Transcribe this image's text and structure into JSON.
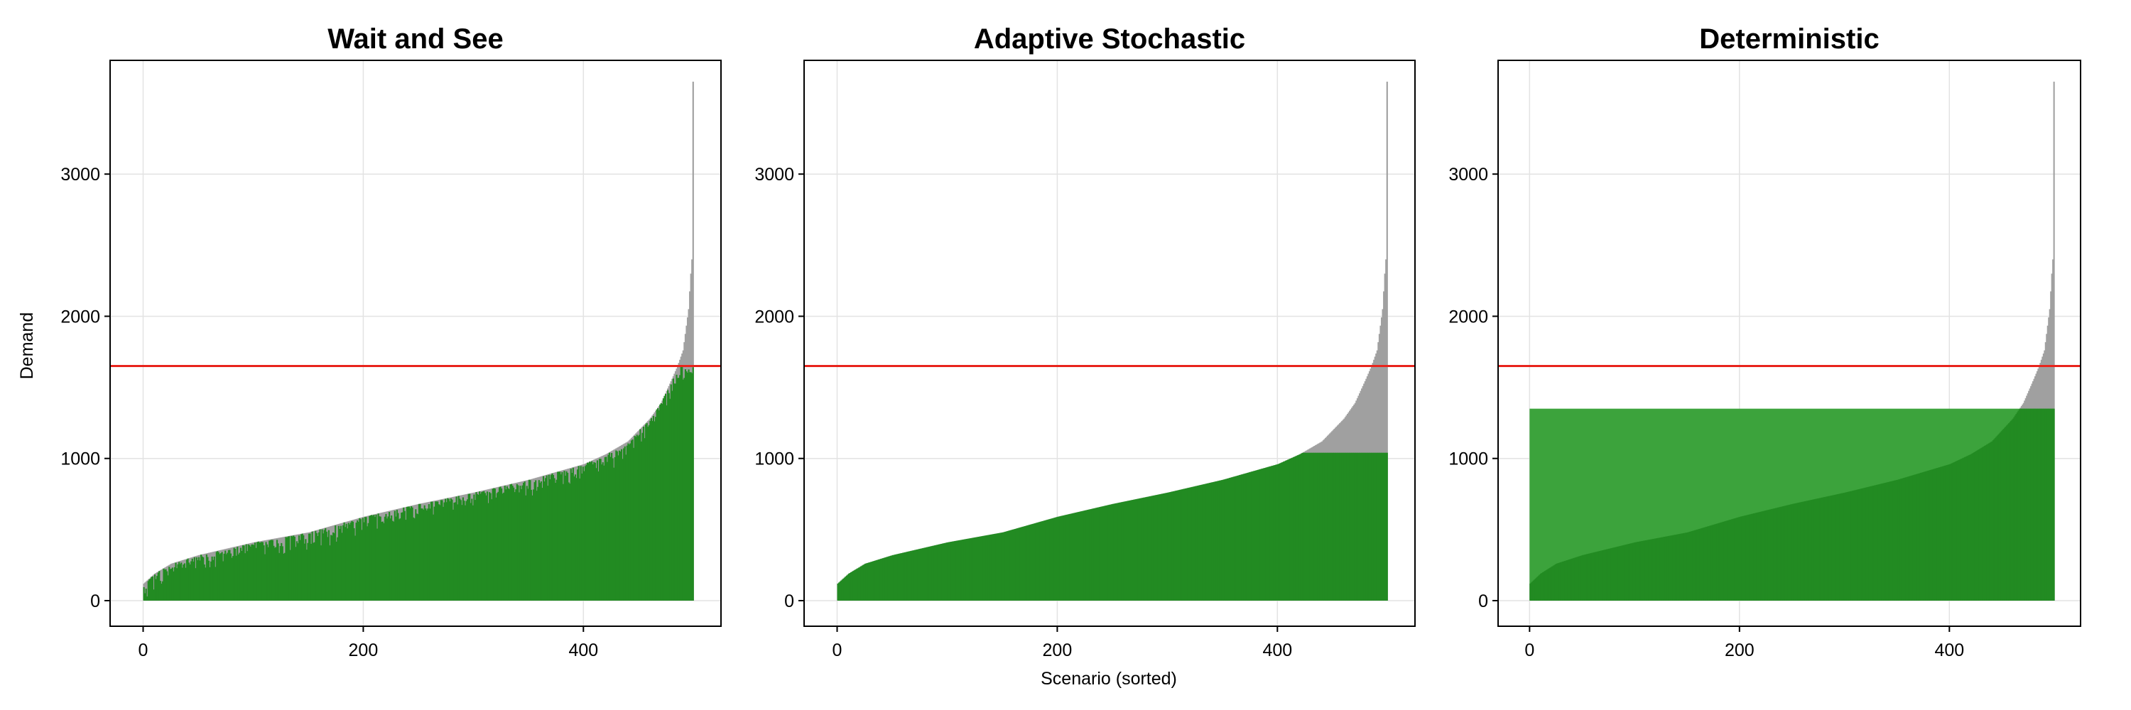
{
  "figure": {
    "xlabel": "Scenario (sorted)",
    "ylabel": "Demand"
  },
  "colors": {
    "demand": "#a0a0a0",
    "served": "#228b22",
    "capacity_line": "#e8241c",
    "grid": "#e3e3e3"
  },
  "chart_data": [
    {
      "type": "bar",
      "title": "Wait and See",
      "xlim": [
        -30,
        525
      ],
      "ylim": [
        -180,
        3800
      ],
      "xticks": [
        0,
        200,
        400
      ],
      "yticks": [
        0,
        1000,
        2000,
        3000
      ],
      "grid": true,
      "n_scenarios": 500,
      "capacity_line": 1650,
      "served_cap": 1650,
      "served_rule": "equals demand up to capacity line (with small per-scenario shortfall near top)",
      "demand_quantiles": {
        "x": [
          0,
          10,
          25,
          50,
          100,
          150,
          200,
          250,
          300,
          350,
          400,
          420,
          440,
          460,
          470,
          480,
          485,
          490,
          495,
          497,
          498,
          499
        ],
        "y": [
          120,
          190,
          260,
          320,
          410,
          480,
          590,
          680,
          760,
          850,
          960,
          1030,
          1120,
          1280,
          1390,
          1560,
          1650,
          1760,
          2050,
          2300,
          2400,
          3650
        ]
      },
      "series": [
        {
          "name": "",
          "role": "demand"
        },
        {
          "name": "",
          "role": "served"
        }
      ]
    },
    {
      "type": "bar",
      "title": "Adaptive Stochastic",
      "xlim": [
        -30,
        525
      ],
      "ylim": [
        -180,
        3800
      ],
      "xticks": [
        0,
        200,
        400
      ],
      "yticks": [
        0,
        1000,
        2000,
        3000
      ],
      "grid": true,
      "n_scenarios": 500,
      "capacity_line": 1650,
      "served_cap": 1040,
      "served_rule": "equals demand up to served cap",
      "demand_quantiles": {
        "x": [
          0,
          10,
          25,
          50,
          100,
          150,
          200,
          250,
          300,
          350,
          400,
          420,
          440,
          460,
          470,
          480,
          485,
          490,
          495,
          497,
          498,
          499
        ],
        "y": [
          120,
          190,
          260,
          320,
          410,
          480,
          590,
          680,
          760,
          850,
          960,
          1030,
          1120,
          1280,
          1390,
          1560,
          1650,
          1760,
          2050,
          2300,
          2400,
          3650
        ]
      },
      "series": [
        {
          "name": "",
          "role": "demand"
        },
        {
          "name": "",
          "role": "served"
        }
      ]
    },
    {
      "type": "bar",
      "title": "Deterministic",
      "xlim": [
        -30,
        525
      ],
      "ylim": [
        -180,
        3800
      ],
      "xticks": [
        0,
        200,
        400
      ],
      "yticks": [
        0,
        1000,
        2000,
        3000
      ],
      "grid": true,
      "n_scenarios": 500,
      "capacity_line": 1650,
      "served_cap": 1350,
      "served_rule": "fixed capacity rectangle at served cap; demand shown beneath in darker green",
      "demand_quantiles": {
        "x": [
          0,
          10,
          25,
          50,
          100,
          150,
          200,
          250,
          300,
          350,
          400,
          420,
          440,
          460,
          470,
          480,
          485,
          490,
          495,
          497,
          498,
          499
        ],
        "y": [
          120,
          190,
          260,
          320,
          410,
          480,
          590,
          680,
          760,
          850,
          960,
          1030,
          1120,
          1280,
          1390,
          1560,
          1650,
          1760,
          2050,
          2300,
          2400,
          3650
        ]
      },
      "series": [
        {
          "name": "",
          "role": "demand"
        },
        {
          "name": "",
          "role": "served"
        }
      ]
    }
  ]
}
